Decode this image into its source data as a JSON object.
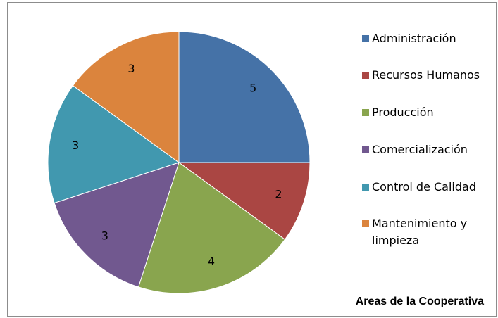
{
  "chart_data": {
    "type": "pie",
    "title": "Areas de la Cooperativa",
    "categories": [
      "Administración",
      "Recursos Humanos",
      "Producción",
      "Comercialización",
      "Control de Calidad",
      "Mantenimiento y limpieza"
    ],
    "values": [
      5,
      2,
      4,
      3,
      3,
      3
    ],
    "colors": [
      "#4572A7",
      "#AA4643",
      "#89A54E",
      "#71588F",
      "#4198AF",
      "#DB843D"
    ]
  }
}
